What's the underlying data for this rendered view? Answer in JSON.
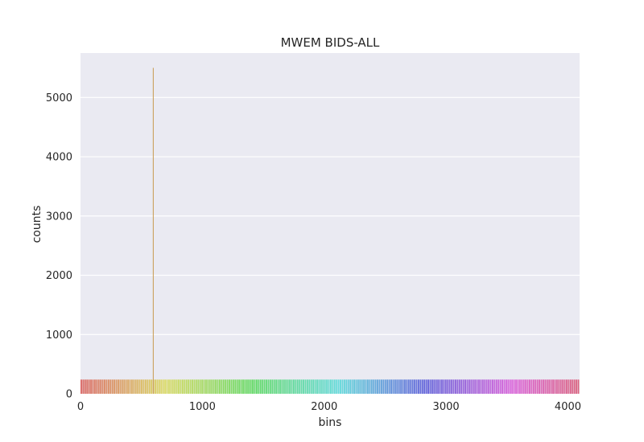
{
  "chart_data": {
    "type": "bar",
    "title": "MWEM BIDS-ALL",
    "xlabel": "bins",
    "ylabel": "counts",
    "xlim": [
      0,
      4096
    ],
    "ylim": [
      0,
      5750
    ],
    "x_ticks": [
      0,
      1000,
      2000,
      3000,
      4000
    ],
    "y_ticks": [
      0,
      1000,
      2000,
      3000,
      4000,
      5000
    ],
    "grid": true,
    "n_bins": 4096,
    "baseline_count": 240,
    "peak": {
      "bin": 597,
      "count": 5500
    },
    "palette": "husl",
    "colors": {
      "background": "#eaeaf2",
      "grid": "#ffffff",
      "peak_bar": "#c89a4e"
    }
  }
}
